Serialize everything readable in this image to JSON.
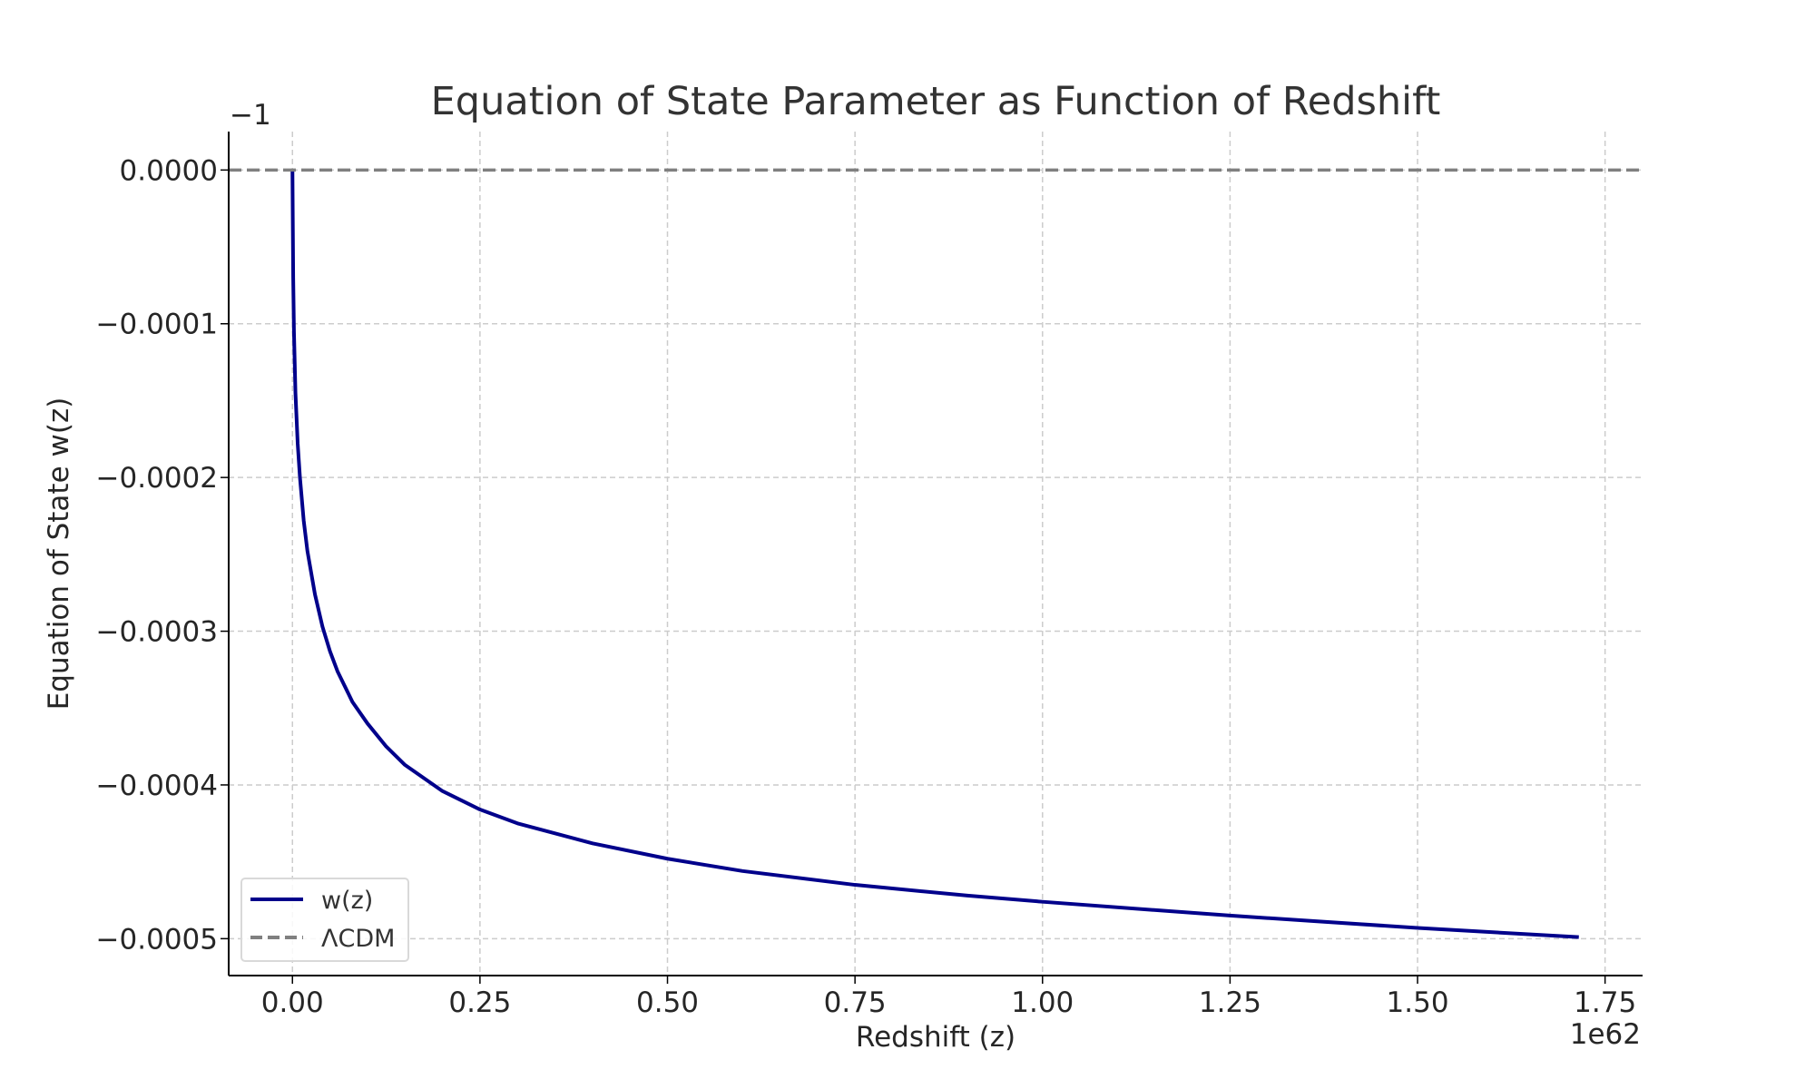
{
  "chart_data": {
    "type": "line",
    "title": "Equation of State Parameter as Function of Redshift",
    "xlabel": "Redshift (z)",
    "ylabel": "Equation of State w(z)",
    "x_offset_label": "1e62",
    "y_offset_label": "−1",
    "xlim": [
      -0.085,
      1.8
    ],
    "ylim": [
      -0.000524,
      2.5e-05
    ],
    "x_ticks": [
      0.0,
      0.25,
      0.5,
      0.75,
      1.0,
      1.25,
      1.5,
      1.75
    ],
    "x_tick_labels": [
      "0.00",
      "0.25",
      "0.50",
      "0.75",
      "1.00",
      "1.25",
      "1.50",
      "1.75"
    ],
    "y_ticks": [
      0.0,
      -0.0001,
      -0.0002,
      -0.0003,
      -0.0004,
      -0.0005
    ],
    "y_tick_labels": [
      "0.0000",
      "−0.0001",
      "−0.0002",
      "−0.0003",
      "−0.0004",
      "−0.0005"
    ],
    "grid": true,
    "legend_position": "lower-left",
    "series": [
      {
        "name": "w(z)",
        "color": "#00008b",
        "style": "solid",
        "x": [
          0.0,
          0.001,
          0.002,
          0.004,
          0.007,
          0.01,
          0.015,
          0.02,
          0.03,
          0.04,
          0.05,
          0.06,
          0.08,
          0.1,
          0.125,
          0.15,
          0.2,
          0.25,
          0.3,
          0.4,
          0.5,
          0.6,
          0.75,
          0.9,
          1.0,
          1.25,
          1.5,
          1.715
        ],
        "y": [
          0.0,
          -7e-05,
          -0.000105,
          -0.000145,
          -0.000178,
          -0.0002,
          -0.000228,
          -0.000248,
          -0.000276,
          -0.000297,
          -0.000313,
          -0.000326,
          -0.000346,
          -0.00036,
          -0.000375,
          -0.000387,
          -0.000404,
          -0.000416,
          -0.000425,
          -0.000438,
          -0.000448,
          -0.000456,
          -0.000465,
          -0.000472,
          -0.000476,
          -0.000485,
          -0.000493,
          -0.000499
        ]
      },
      {
        "name": "ΛCDM",
        "color": "#808080",
        "style": "dashed",
        "x": [
          -0.085,
          1.8
        ],
        "y": [
          0.0,
          0.0
        ]
      }
    ]
  }
}
